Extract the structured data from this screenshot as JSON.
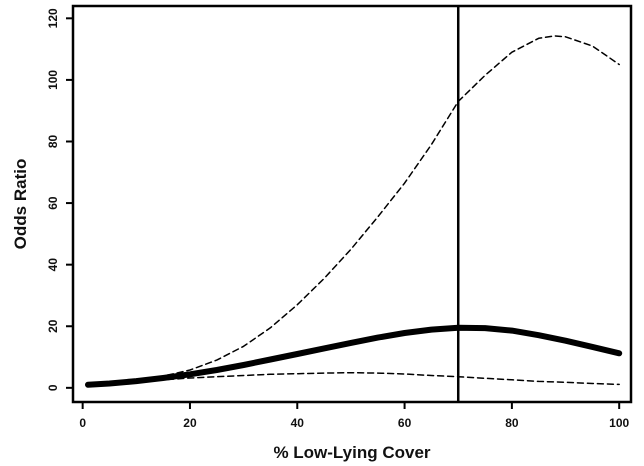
{
  "chart_data": {
    "type": "line",
    "title": "",
    "xlabel": "% Low-Lying Cover",
    "ylabel": "Odds Ratio",
    "xlim": [
      0,
      100
    ],
    "ylim": [
      0,
      120
    ],
    "x_ticks": [
      0,
      20,
      40,
      60,
      80,
      100
    ],
    "x_tick_labels": [
      "0",
      "20",
      "40",
      "60",
      "80",
      "100"
    ],
    "y_ticks": [
      0,
      20,
      40,
      60,
      80,
      100,
      120
    ],
    "y_tick_labels": [
      "0",
      "20",
      "40",
      "60",
      "80",
      "100",
      "120"
    ],
    "grid": false,
    "legend": "none",
    "vertical_reference_line": {
      "x": 70
    },
    "series": [
      {
        "style": "solid-thick",
        "color": "#000000",
        "x": [
          1,
          5,
          10,
          15,
          20,
          25,
          30,
          35,
          40,
          45,
          50,
          55,
          60,
          65,
          70,
          75,
          80,
          85,
          90,
          95,
          100
        ],
        "y": [
          1.0,
          1.4,
          2.2,
          3.2,
          4.4,
          5.8,
          7.4,
          9.2,
          11.0,
          12.8,
          14.6,
          16.3,
          17.8,
          18.9,
          19.5,
          19.4,
          18.6,
          17.1,
          15.3,
          13.3,
          11.2
        ]
      },
      {
        "style": "dashed-upper",
        "color": "#000000",
        "x": [
          1,
          5,
          10,
          15,
          20,
          25,
          30,
          35,
          40,
          45,
          50,
          55,
          60,
          65,
          70,
          75,
          80,
          85,
          88,
          90,
          95,
          100
        ],
        "y": [
          1.0,
          1.5,
          2.5,
          3.8,
          5.8,
          9.0,
          13.5,
          19.5,
          27.0,
          35.5,
          45.0,
          55.5,
          66.5,
          79.0,
          93.0,
          101.5,
          109.0,
          113.5,
          114.3,
          114.0,
          111.0,
          105.0
        ]
      },
      {
        "style": "dashed-lower",
        "color": "#000000",
        "x": [
          1,
          5,
          10,
          15,
          20,
          25,
          30,
          35,
          40,
          45,
          50,
          55,
          60,
          65,
          70,
          75,
          80,
          85,
          90,
          95,
          100
        ],
        "y": [
          1.0,
          1.4,
          2.0,
          2.6,
          3.2,
          3.6,
          4.0,
          4.4,
          4.6,
          4.8,
          4.9,
          4.8,
          4.5,
          4.0,
          3.6,
          3.1,
          2.6,
          2.1,
          1.8,
          1.4,
          1.1
        ]
      }
    ]
  }
}
